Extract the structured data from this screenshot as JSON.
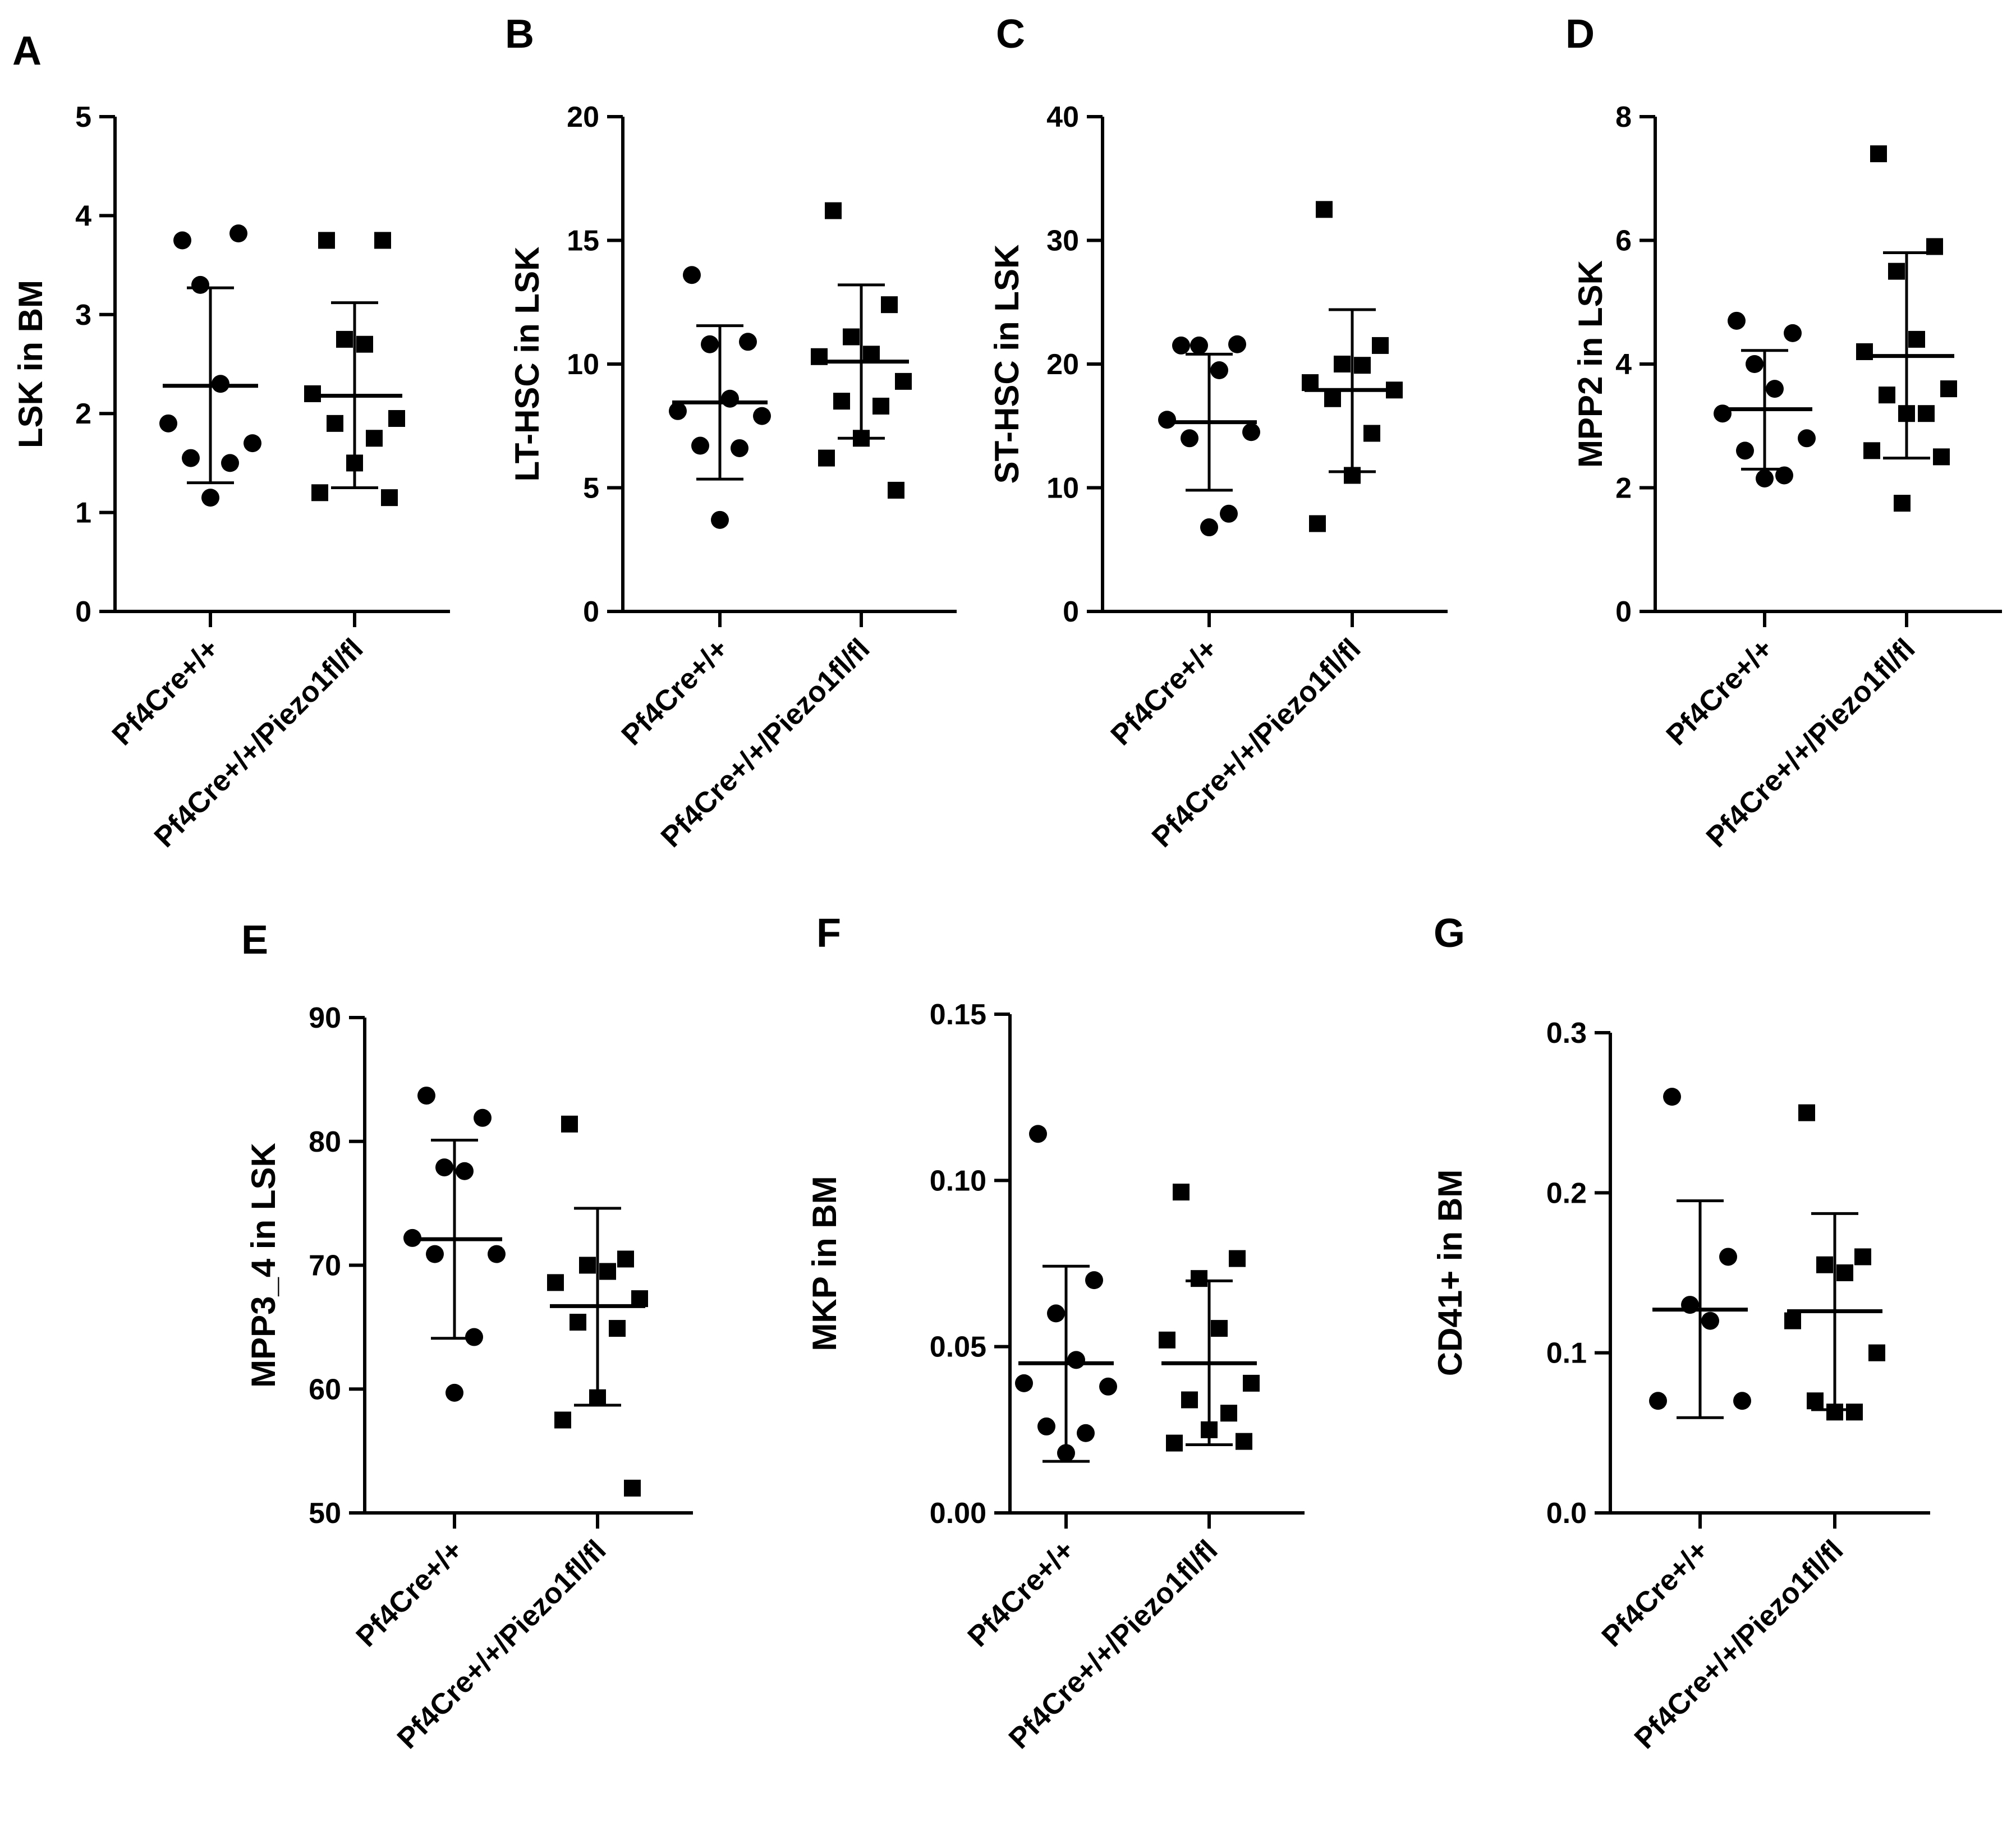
{
  "figure": {
    "colors": {
      "ink": "#000000",
      "background": "#ffffff"
    }
  },
  "chart_data": [
    {
      "panel": "A",
      "type": "scatter",
      "ylabel": "LSK in BM",
      "ylim": [
        0,
        5
      ],
      "yticks": [
        "0",
        "1",
        "2",
        "3",
        "4",
        "5"
      ],
      "categories": [
        "Pf4Cre+/+",
        "Pf4Cre+/+/Piezo1fl/fl"
      ],
      "series": [
        {
          "name": "Pf4Cre+/+",
          "marker": "circle",
          "mean": 2.28,
          "sd_low": 1.3,
          "sd_high": 3.27,
          "points": [
            3.75,
            3.82,
            3.3,
            2.3,
            1.9,
            1.7,
            1.55,
            1.5,
            1.15
          ]
        },
        {
          "name": "Pf4Cre+/+/Piezo1fl/fl",
          "marker": "square",
          "mean": 2.18,
          "sd_low": 1.25,
          "sd_high": 3.12,
          "points": [
            3.75,
            3.75,
            2.75,
            2.7,
            2.2,
            1.95,
            1.9,
            1.75,
            1.5,
            1.2,
            1.15
          ]
        }
      ]
    },
    {
      "panel": "B",
      "type": "scatter",
      "ylabel": "LT-HSC in LSK",
      "ylim": [
        0,
        20
      ],
      "yticks": [
        "0",
        "5",
        "10",
        "15",
        "20"
      ],
      "categories": [
        "Pf4Cre+/+",
        "Pf4Cre+/+/Piezo1fl/fl"
      ],
      "series": [
        {
          "name": "Pf4Cre+/+",
          "marker": "circle",
          "mean": 8.45,
          "sd_low": 5.35,
          "sd_high": 11.55,
          "points": [
            13.6,
            10.9,
            10.8,
            8.6,
            8.1,
            7.9,
            6.7,
            6.6,
            3.7
          ]
        },
        {
          "name": "Pf4Cre+/+/Piezo1fl/fl",
          "marker": "square",
          "mean": 10.1,
          "sd_low": 7.0,
          "sd_high": 13.2,
          "points": [
            16.2,
            12.4,
            11.1,
            10.4,
            10.3,
            9.3,
            8.5,
            8.3,
            7.0,
            6.2,
            4.9
          ]
        }
      ]
    },
    {
      "panel": "C",
      "type": "scatter",
      "ylabel": "ST-HSC in LSK",
      "ylim": [
        0,
        40
      ],
      "yticks": [
        "0",
        "10",
        "20",
        "30",
        "40"
      ],
      "categories": [
        "Pf4Cre+/+",
        "Pf4Cre+/+/Piezo1fl/fl"
      ],
      "series": [
        {
          "name": "Pf4Cre+/+",
          "marker": "circle",
          "mean": 15.3,
          "sd_low": 9.8,
          "sd_high": 20.8,
          "points": [
            21.5,
            21.6,
            21.5,
            19.5,
            15.5,
            14.5,
            14.0,
            7.9,
            6.8
          ]
        },
        {
          "name": "Pf4Cre+/+/Piezo1fl/fl",
          "marker": "square",
          "mean": 17.9,
          "sd_low": 11.3,
          "sd_high": 24.4,
          "points": [
            32.5,
            21.5,
            20.0,
            19.9,
            18.5,
            17.9,
            17.2,
            14.4,
            11.0,
            7.1
          ]
        }
      ]
    },
    {
      "panel": "D",
      "type": "scatter",
      "ylabel": "MPP2 in LSK",
      "ylim": [
        0,
        8
      ],
      "yticks": [
        "0",
        "2",
        "4",
        "6",
        "8"
      ],
      "categories": [
        "Pf4Cre+/+",
        "Pf4Cre+/+/Piezo1fl/fl"
      ],
      "series": [
        {
          "name": "Pf4Cre+/+",
          "marker": "circle",
          "mean": 3.27,
          "sd_low": 2.3,
          "sd_high": 4.22,
          "points": [
            4.7,
            4.5,
            4.0,
            3.6,
            3.2,
            2.8,
            2.6,
            2.2,
            2.15
          ]
        },
        {
          "name": "Pf4Cre+/+/Piezo1fl/fl",
          "marker": "square",
          "mean": 4.13,
          "sd_low": 2.48,
          "sd_high": 5.8,
          "points": [
            7.4,
            5.9,
            5.5,
            4.4,
            4.2,
            3.6,
            3.5,
            3.2,
            3.2,
            2.6,
            2.5,
            1.75
          ]
        }
      ]
    },
    {
      "panel": "E",
      "type": "scatter",
      "ylabel": "MPP3_4 in LSK",
      "ylim": [
        50,
        90
      ],
      "yticks": [
        "50",
        "60",
        "70",
        "80",
        "90"
      ],
      "categories": [
        "Pf4Cre+/+",
        "Pf4Cre+/+/Piezo1fl/fl"
      ],
      "series": [
        {
          "name": "Pf4Cre+/+",
          "marker": "circle",
          "mean": 72.1,
          "sd_low": 64.1,
          "sd_high": 80.1,
          "points": [
            83.7,
            81.9,
            77.9,
            77.6,
            72.2,
            70.9,
            70.9,
            64.2,
            59.7
          ]
        },
        {
          "name": "Pf4Cre+/+/Piezo1fl/fl",
          "marker": "square",
          "mean": 66.7,
          "sd_low": 58.7,
          "sd_high": 74.6,
          "points": [
            81.4,
            70.5,
            70.0,
            69.5,
            68.6,
            67.3,
            65.4,
            64.9,
            59.3,
            57.5,
            52.0
          ]
        }
      ]
    },
    {
      "panel": "F",
      "type": "scatter",
      "ylabel": "MKP in BM",
      "ylim": [
        0,
        0.15
      ],
      "yticks": [
        "0.00",
        "0.05",
        "0.10",
        "0.15"
      ],
      "categories": [
        "Pf4Cre+/+",
        "Pf4Cre+/+/Piezo1fl/fl"
      ],
      "series": [
        {
          "name": "Pf4Cre+/+",
          "marker": "circle",
          "mean": 0.045,
          "sd_low": 0.0155,
          "sd_high": 0.0742,
          "points": [
            0.114,
            0.07,
            0.06,
            0.046,
            0.039,
            0.038,
            0.026,
            0.024,
            0.018
          ]
        },
        {
          "name": "Pf4Cre+/+/Piezo1fl/fl",
          "marker": "square",
          "mean": 0.045,
          "sd_low": 0.0205,
          "sd_high": 0.0698,
          "points": [
            0.0965,
            0.0765,
            0.0705,
            0.0555,
            0.052,
            0.039,
            0.034,
            0.03,
            0.025,
            0.021,
            0.0215
          ]
        }
      ]
    },
    {
      "panel": "G",
      "type": "scatter",
      "ylabel": "CD41+ in BM",
      "ylim": [
        0,
        0.3
      ],
      "yticks": [
        "0.0",
        "0.1",
        "0.2",
        "0.3"
      ],
      "categories": [
        "Pf4Cre+/+",
        "Pf4Cre+/+/Piezo1fl/fl"
      ],
      "series": [
        {
          "name": "Pf4Cre+/+",
          "marker": "circle",
          "mean": 0.127,
          "sd_low": 0.0595,
          "sd_high": 0.195,
          "points": [
            0.26,
            0.16,
            0.13,
            0.12,
            0.07,
            0.07
          ]
        },
        {
          "name": "Pf4Cre+/+/Piezo1fl/fl",
          "marker": "square",
          "mean": 0.126,
          "sd_low": 0.0645,
          "sd_high": 0.187,
          "points": [
            0.25,
            0.16,
            0.155,
            0.15,
            0.12,
            0.1,
            0.07,
            0.063,
            0.063
          ]
        }
      ]
    }
  ]
}
